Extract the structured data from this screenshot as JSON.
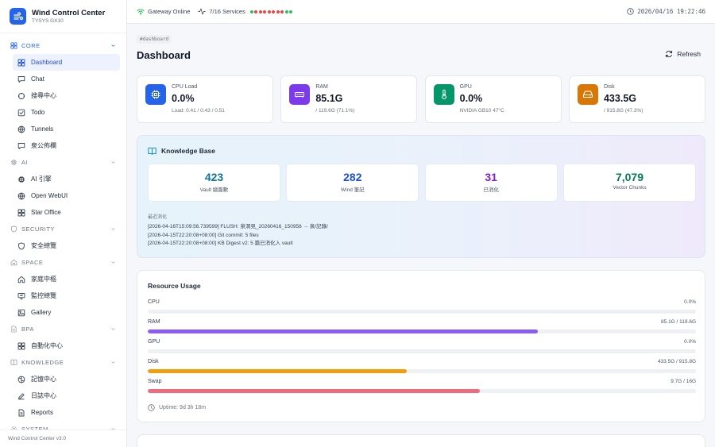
{
  "app": {
    "title": "Wind Control Center",
    "subtitle": "TYSYS GX10",
    "version": "Wind Control Center v3.0"
  },
  "sidebar": {
    "sections": [
      {
        "label": "CORE",
        "icon": "grid-icon",
        "items": [
          {
            "label": "Dashboard",
            "icon": "grid-icon",
            "active": true
          },
          {
            "label": "Chat",
            "icon": "chat-icon"
          },
          {
            "label": "搜尋中心",
            "icon": "search-icon"
          },
          {
            "label": "Todo",
            "icon": "checkbox-icon"
          },
          {
            "label": "Tunnels",
            "icon": "globe-icon"
          },
          {
            "label": "泉公佈欄",
            "icon": "chat-icon"
          }
        ]
      },
      {
        "label": "AI",
        "icon": "cpu-icon",
        "items": [
          {
            "label": "AI 引擎",
            "icon": "cpu-icon"
          },
          {
            "label": "Open WebUI",
            "icon": "globe-icon"
          },
          {
            "label": "Star Office",
            "icon": "grid-icon"
          }
        ]
      },
      {
        "label": "SECURITY",
        "icon": "shield-icon",
        "items": [
          {
            "label": "安全總覽",
            "icon": "shield-icon"
          }
        ]
      },
      {
        "label": "SPACE",
        "icon": "home-icon",
        "items": [
          {
            "label": "家庭中樞",
            "icon": "home-icon"
          },
          {
            "label": "監控總覽",
            "icon": "monitor-icon"
          },
          {
            "label": "Gallery",
            "icon": "image-icon"
          }
        ]
      },
      {
        "label": "BPA",
        "icon": "doc-icon",
        "items": [
          {
            "label": "自動化中心",
            "icon": "grid-icon"
          }
        ]
      },
      {
        "label": "KNOWLEDGE",
        "icon": "book-icon",
        "items": [
          {
            "label": "記憶中心",
            "icon": "brain-icon"
          },
          {
            "label": "日誌中心",
            "icon": "pen-icon"
          },
          {
            "label": "Reports",
            "icon": "doc-icon"
          }
        ]
      },
      {
        "label": "SYSTEM",
        "icon": "gear-icon",
        "items": []
      }
    ]
  },
  "topbar": {
    "gateway": "Gateway Online",
    "services": "7/16 Services",
    "service_dots": [
      "#22c55e",
      "#ef4444",
      "#ef4444",
      "#ef4444",
      "#ef4444",
      "#ef4444",
      "#ef4444",
      "#ef4444",
      "#22c55e",
      "#22c55e"
    ],
    "datetime": "2026/04/16 19:22:46"
  },
  "page": {
    "breadcrumb": "#dashboard",
    "title": "Dashboard",
    "refresh_label": "Refresh"
  },
  "stats": [
    {
      "label": "CPU Load",
      "value": "0.0%",
      "sub": "Load: 0.41 / 0.43 / 0.51",
      "icon": "cpu-icon",
      "color": "#2563eb"
    },
    {
      "label": "RAM",
      "value": "85.1G",
      "sub": "/ 119.6G (71.1%)",
      "icon": "memory-icon",
      "color": "#7c3aed"
    },
    {
      "label": "GPU",
      "value": "0.0%",
      "sub": "NVIDIA GB10 47°C",
      "icon": "thermometer-icon",
      "color": "#059669"
    },
    {
      "label": "Disk",
      "value": "433.5G",
      "sub": "/ 915.8G (47.3%)",
      "icon": "hdd-icon",
      "color": "#d97706"
    }
  ],
  "knowledge": {
    "title": "Knowledge Base",
    "cards": [
      {
        "value": "423",
        "label": "Vault 總篇數",
        "color": "#0e7490"
      },
      {
        "value": "282",
        "label": "Wind 筆記",
        "color": "#1d4ed8"
      },
      {
        "value": "31",
        "label": "已消化",
        "color": "#7e22ce"
      },
      {
        "value": "7,079",
        "label": "Vector Chunks",
        "color": "#047857"
      }
    ],
    "recent_label": "最近消化",
    "recent": [
      "[2026-04-16T15:09:56.739599] FLUSH: 泉洞見_20260416_150956 → 泉/記錄/",
      "[2026-04-15T22:20:08+08:00] Git commit: 5 files",
      "[2026-04-15T22:20:08+08:00] KB Digest v2: 5 篇已消化入 vault"
    ]
  },
  "resources": {
    "title": "Resource Usage",
    "rows": [
      {
        "name": "CPU",
        "value": "0.0%",
        "percent": 0,
        "color": "#3b82f6"
      },
      {
        "name": "RAM",
        "value": "85.1G / 119.6G",
        "percent": 71.1,
        "color": "#8b5cf6"
      },
      {
        "name": "GPU",
        "value": "0.0%",
        "percent": 0,
        "color": "#10b981"
      },
      {
        "name": "Disk",
        "value": "433.5G / 915.8G",
        "percent": 47.3,
        "color": "#f59e0b"
      },
      {
        "name": "Swap",
        "value": "9.7G / 16G",
        "percent": 60.6,
        "color": "#f06a7f"
      }
    ],
    "uptime": "Uptime: 9d 3h 18m"
  }
}
